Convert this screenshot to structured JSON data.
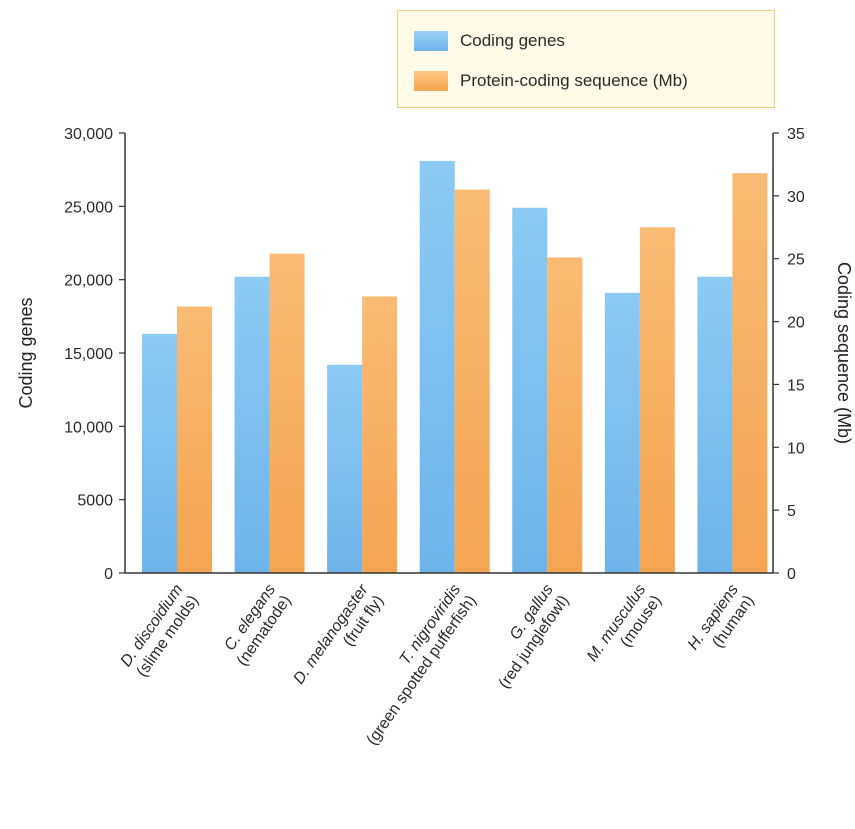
{
  "colors": {
    "coding_genes": "#7dbdee",
    "coding_sequence": "#f6ae5c",
    "legend_bg": "#fffbe8",
    "legend_border": "#ecd37a"
  },
  "legend": {
    "entries": [
      {
        "label": "Coding genes",
        "color": "#7dbdee"
      },
      {
        "label": "Protein-coding sequence (Mb)",
        "color": "#f6ae5c"
      }
    ]
  },
  "chart_data": {
    "type": "bar",
    "ylabel_left": "Coding genes",
    "ylabel_right": "Coding sequence (Mb)",
    "ylim_left": [
      0,
      30000
    ],
    "ylim_right": [
      0,
      35
    ],
    "yticks_left": [
      "0",
      "5000",
      "10,000",
      "15,000",
      "20,000",
      "25,000",
      "30,000"
    ],
    "yticks_right": [
      "0",
      "5",
      "10",
      "15",
      "20",
      "25",
      "30",
      "35"
    ],
    "grid": false,
    "legend_position": "top-right",
    "categories": [
      {
        "species": "D. discoidium",
        "common": "(slime molds)"
      },
      {
        "species": "C. elegans",
        "common": "(nematode)"
      },
      {
        "species": "D. melanogaster",
        "common": "(fruit fly)"
      },
      {
        "species": "T. nigroviridis",
        "common": "(green spotted pufferfish)"
      },
      {
        "species": "G. gallus",
        "common": "(red junglefowl)"
      },
      {
        "species": "M. musculus",
        "common": "(mouse)"
      },
      {
        "species": "H. sapiens",
        "common": "(human)"
      }
    ],
    "series": [
      {
        "name": "Coding genes",
        "axis": "left",
        "values": [
          16300,
          20200,
          14200,
          28100,
          24900,
          19100,
          20200
        ]
      },
      {
        "name": "Protein-coding sequence (Mb)",
        "axis": "right",
        "values": [
          21.2,
          25.4,
          22.0,
          30.5,
          25.1,
          27.5,
          31.8
        ]
      }
    ]
  }
}
